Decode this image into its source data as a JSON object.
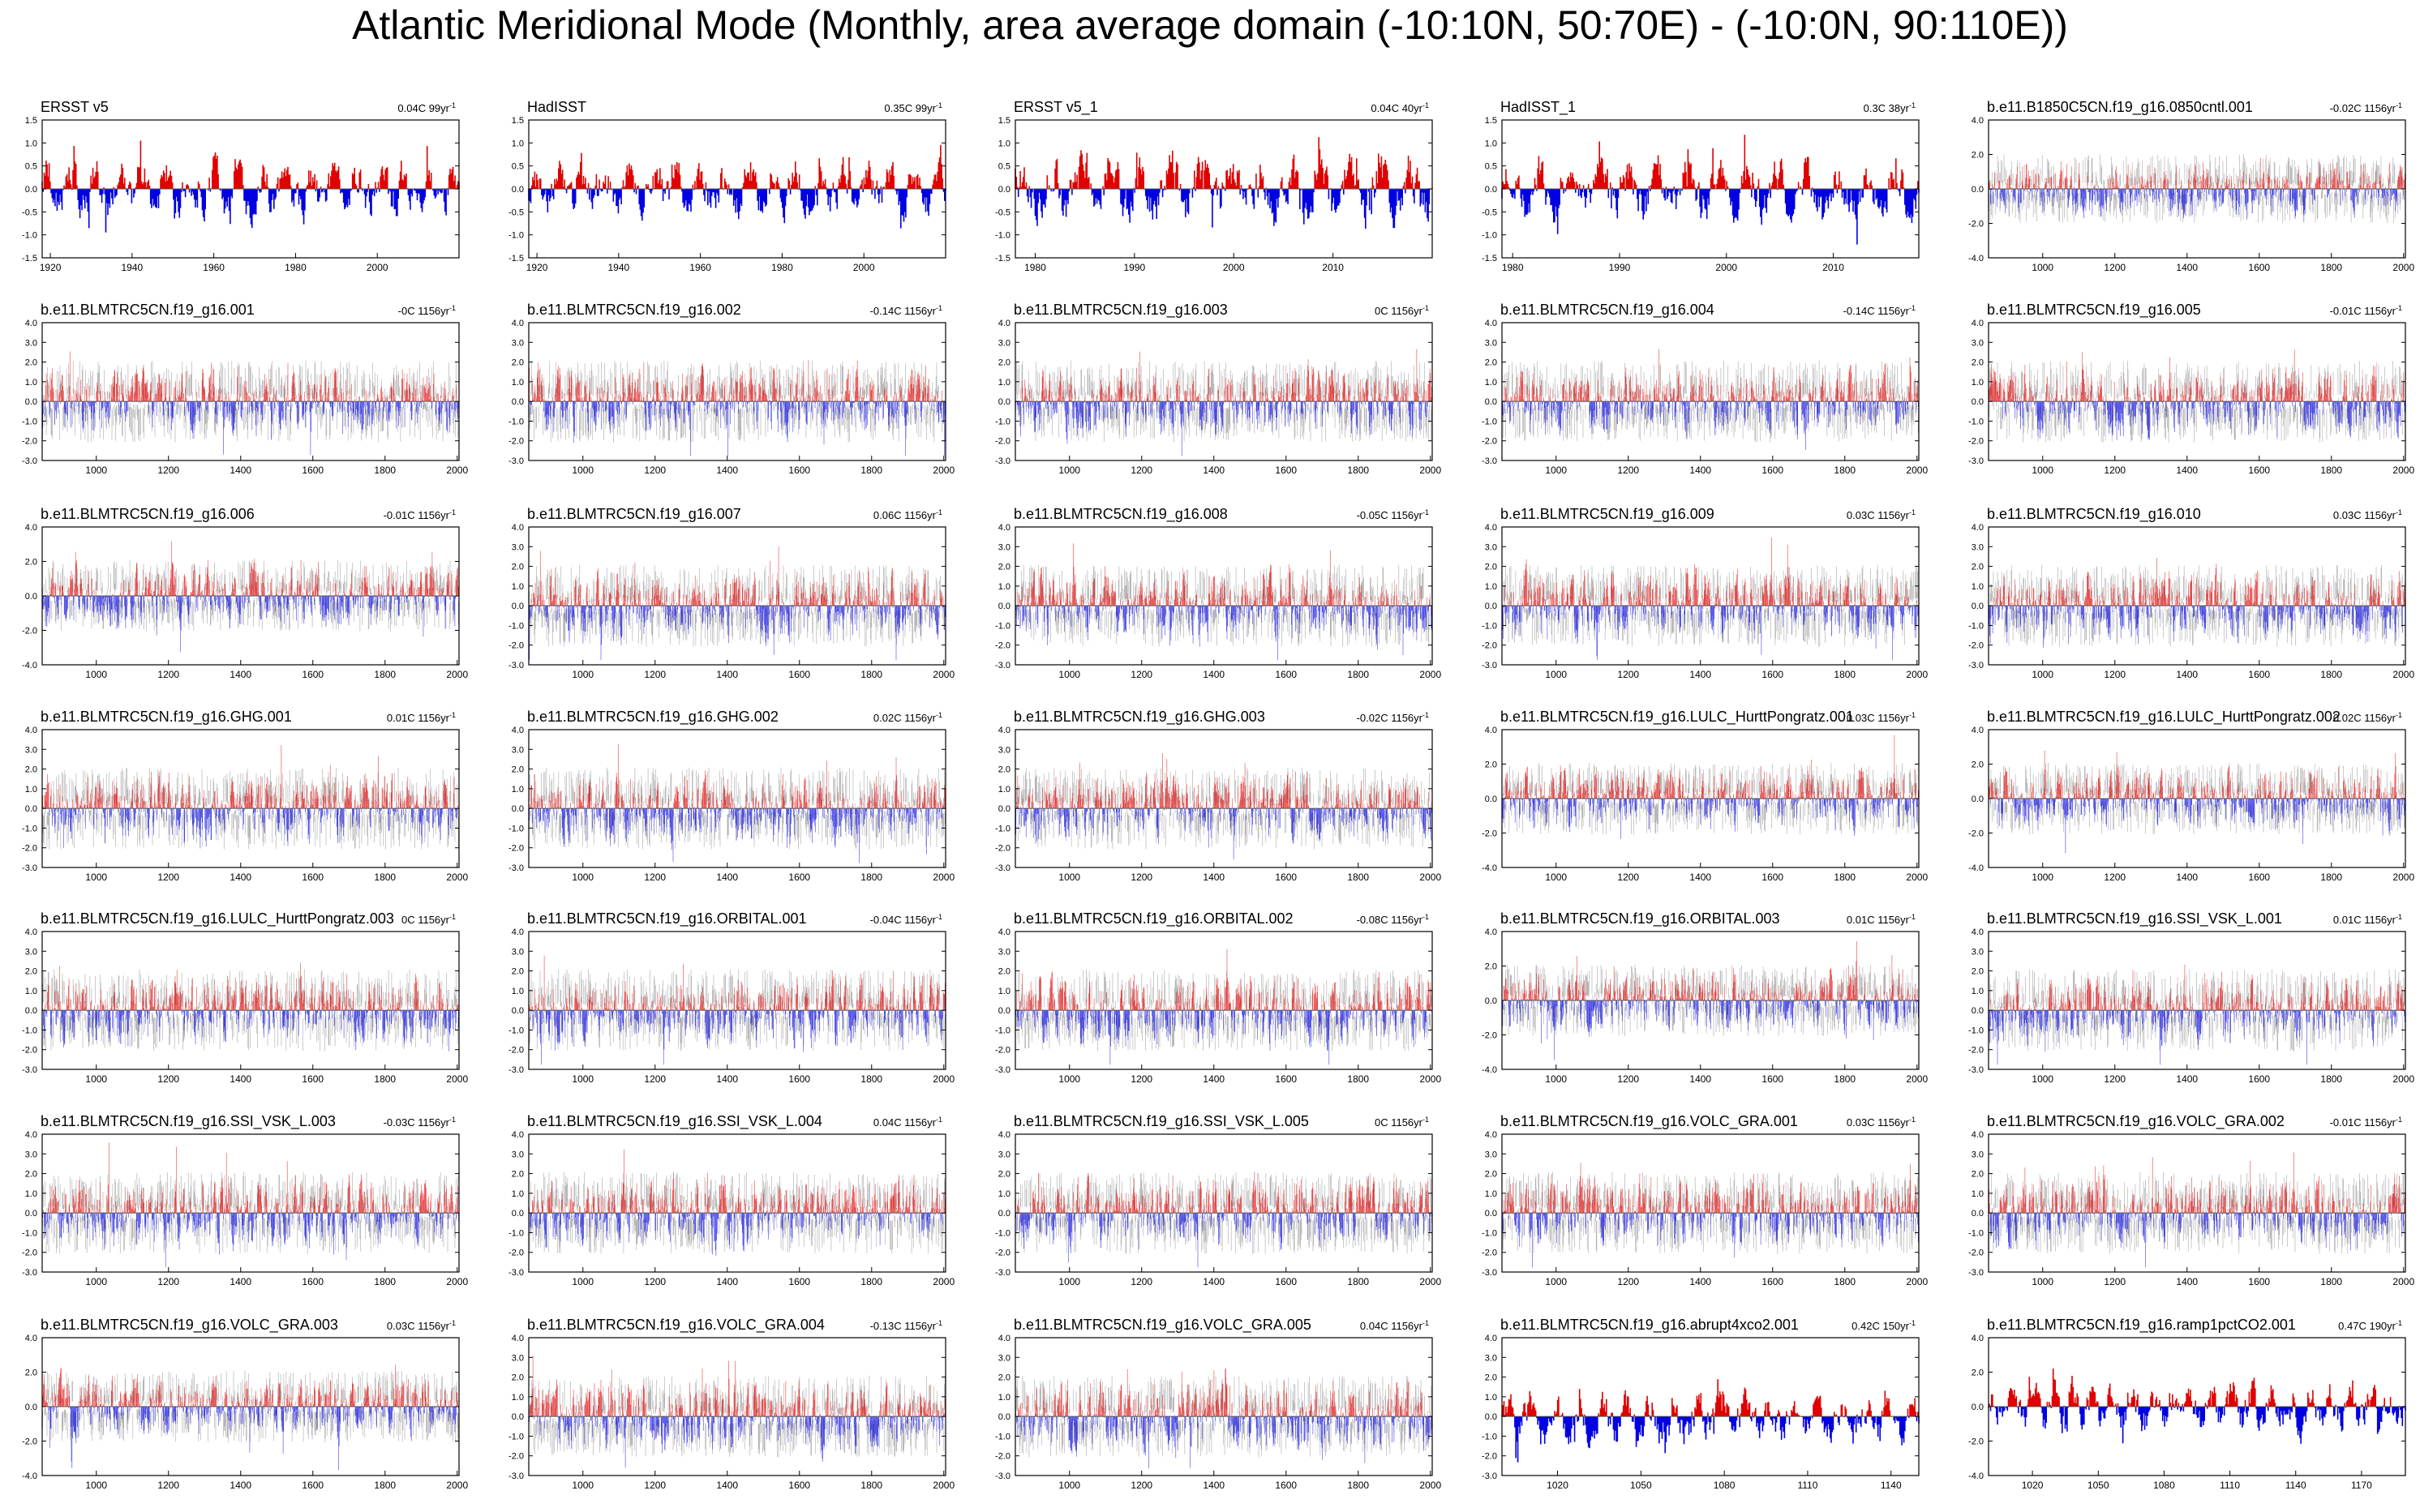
{
  "title": "Atlantic Meridional Mode (Monthly, area average domain (-10:10N, 50:70E) - (-10:0N, 90:110E))",
  "colors": {
    "positive": "#e00000",
    "negative": "#0000e0",
    "ensemble": "#b4b4b4",
    "frame": "#000000"
  },
  "chart_data": [
    {
      "name": "ERSST v5",
      "trend": "0.04C 99yr",
      "trend_sup": "-1",
      "type": "area",
      "style": "solid",
      "xlim": [
        1918,
        2020
      ],
      "ylim": [
        -1.5,
        1.5
      ],
      "yticks": [
        "1.5",
        "1.0",
        "0.5",
        "0.0",
        "-0.5",
        "-1.0",
        "-1.5"
      ],
      "xticks": [
        1920,
        1940,
        1960,
        1980,
        2000
      ],
      "amp": 0.95
    },
    {
      "name": "HadISST",
      "trend": "0.35C 99yr",
      "trend_sup": "-1",
      "type": "area",
      "style": "solid",
      "xlim": [
        1918,
        2020
      ],
      "ylim": [
        -1.5,
        1.5
      ],
      "yticks": [
        "1.5",
        "1.0",
        "0.5",
        "0.0",
        "-0.5",
        "-1.0",
        "-1.5"
      ],
      "xticks": [
        1920,
        1940,
        1960,
        1980,
        2000
      ],
      "amp": 0.85
    },
    {
      "name": "ERSST v5_1",
      "trend": "0.04C 40yr",
      "trend_sup": "-1",
      "type": "area",
      "style": "solid",
      "xlim": [
        1978,
        2020
      ],
      "ylim": [
        -1.5,
        1.5
      ],
      "yticks": [
        "1.5",
        "1.0",
        "0.5",
        "0.0",
        "-0.5",
        "-1.0",
        "-1.5"
      ],
      "xticks": [
        1980,
        1990,
        2000,
        2010
      ],
      "amp": 1.1
    },
    {
      "name": "HadISST_1",
      "trend": "0.3C 38yr",
      "trend_sup": "-1",
      "type": "area",
      "style": "solid",
      "xlim": [
        1979,
        2018
      ],
      "ylim": [
        -1.5,
        1.5
      ],
      "yticks": [
        "1.5",
        "1.0",
        "0.5",
        "0.0",
        "-0.5",
        "-1.0",
        "-1.5"
      ],
      "xticks": [
        1980,
        1990,
        2000,
        2010
      ],
      "amp": 1.0
    },
    {
      "name": "b.e11.B1850C5CN.f19_g16.0850cntl.001",
      "trend": "-0.02C 1156yr",
      "trend_sup": "-1",
      "type": "area",
      "style": "ensemble",
      "xlim": [
        850,
        2005
      ],
      "ylim": [
        -4,
        4
      ],
      "yticks": [
        "4.0",
        "2.0",
        "0.0",
        "-2.0",
        "-4.0"
      ],
      "xticks": [
        1000,
        1200,
        1400,
        1600,
        1800,
        2000
      ],
      "amp": 2.5
    },
    {
      "name": "b.e11.BLMTRC5CN.f19_g16.001",
      "trend": "-0C 1156yr",
      "trend_sup": "-1",
      "type": "area",
      "style": "ensemble",
      "xlim": [
        850,
        2005
      ],
      "ylim": [
        -3,
        4
      ],
      "yticks": [
        "4.0",
        "3.0",
        "2.0",
        "1.0",
        "0.0",
        "-1.0",
        "-2.0",
        "-3.0"
      ],
      "xticks": [
        1000,
        1200,
        1400,
        1600,
        1800,
        2000
      ],
      "amp": 2.6
    },
    {
      "name": "b.e11.BLMTRC5CN.f19_g16.002",
      "trend": "-0.14C 1156yr",
      "trend_sup": "-1",
      "type": "area",
      "style": "ensemble",
      "xlim": [
        850,
        2005
      ],
      "ylim": [
        -3,
        4
      ],
      "yticks": [
        "4.0",
        "3.0",
        "2.0",
        "1.0",
        "0.0",
        "-1.0",
        "-2.0",
        "-3.0"
      ],
      "xticks": [
        1000,
        1200,
        1400,
        1600,
        1800,
        2000
      ],
      "amp": 2.6
    },
    {
      "name": "b.e11.BLMTRC5CN.f19_g16.003",
      "trend": "0C 1156yr",
      "trend_sup": "-1",
      "type": "area",
      "style": "ensemble",
      "xlim": [
        850,
        2005
      ],
      "ylim": [
        -3,
        4
      ],
      "yticks": [
        "4.0",
        "3.0",
        "2.0",
        "1.0",
        "0.0",
        "-1.0",
        "-2.0",
        "-3.0"
      ],
      "xticks": [
        1000,
        1200,
        1400,
        1600,
        1800,
        2000
      ],
      "amp": 2.6
    },
    {
      "name": "b.e11.BLMTRC5CN.f19_g16.004",
      "trend": "-0.14C 1156yr",
      "trend_sup": "-1",
      "type": "area",
      "style": "ensemble",
      "xlim": [
        850,
        2005
      ],
      "ylim": [
        -3,
        4
      ],
      "yticks": [
        "4.0",
        "3.0",
        "2.0",
        "1.0",
        "0.0",
        "-1.0",
        "-2.0",
        "-3.0"
      ],
      "xticks": [
        1000,
        1200,
        1400,
        1600,
        1800,
        2000
      ],
      "amp": 2.6
    },
    {
      "name": "b.e11.BLMTRC5CN.f19_g16.005",
      "trend": "-0.01C 1156yr",
      "trend_sup": "-1",
      "type": "area",
      "style": "ensemble",
      "xlim": [
        850,
        2005
      ],
      "ylim": [
        -3,
        4
      ],
      "yticks": [
        "4.0",
        "3.0",
        "2.0",
        "1.0",
        "0.0",
        "-1.0",
        "-2.0",
        "-3.0"
      ],
      "xticks": [
        1000,
        1200,
        1400,
        1600,
        1800,
        2000
      ],
      "amp": 2.6
    },
    {
      "name": "b.e11.BLMTRC5CN.f19_g16.006",
      "trend": "-0.01C 1156yr",
      "trend_sup": "-1",
      "type": "area",
      "style": "ensemble",
      "xlim": [
        850,
        2005
      ],
      "ylim": [
        -4,
        4
      ],
      "yticks": [
        "4.0",
        "2.0",
        "0.0",
        "-2.0",
        "-4.0"
      ],
      "xticks": [
        1000,
        1200,
        1400,
        1600,
        1800,
        2000
      ],
      "amp": 2.6
    },
    {
      "name": "b.e11.BLMTRC5CN.f19_g16.007",
      "trend": "0.06C 1156yr",
      "trend_sup": "-1",
      "type": "area",
      "style": "ensemble",
      "xlim": [
        850,
        2005
      ],
      "ylim": [
        -3,
        4
      ],
      "yticks": [
        "4.0",
        "3.0",
        "2.0",
        "1.0",
        "0.0",
        "-1.0",
        "-2.0",
        "-3.0"
      ],
      "xticks": [
        1000,
        1200,
        1400,
        1600,
        1800,
        2000
      ],
      "amp": 2.6
    },
    {
      "name": "b.e11.BLMTRC5CN.f19_g16.008",
      "trend": "-0.05C 1156yr",
      "trend_sup": "-1",
      "type": "area",
      "style": "ensemble",
      "xlim": [
        850,
        2005
      ],
      "ylim": [
        -3,
        4
      ],
      "yticks": [
        "4.0",
        "3.0",
        "2.0",
        "1.0",
        "0.0",
        "-1.0",
        "-2.0",
        "-3.0"
      ],
      "xticks": [
        1000,
        1200,
        1400,
        1600,
        1800,
        2000
      ],
      "amp": 2.6
    },
    {
      "name": "b.e11.BLMTRC5CN.f19_g16.009",
      "trend": "0.03C 1156yr",
      "trend_sup": "-1",
      "type": "area",
      "style": "ensemble",
      "xlim": [
        850,
        2005
      ],
      "ylim": [
        -3,
        4
      ],
      "yticks": [
        "4.0",
        "3.0",
        "2.0",
        "1.0",
        "0.0",
        "-1.0",
        "-2.0",
        "-3.0"
      ],
      "xticks": [
        1000,
        1200,
        1400,
        1600,
        1800,
        2000
      ],
      "amp": 2.6
    },
    {
      "name": "b.e11.BLMTRC5CN.f19_g16.010",
      "trend": "0.03C 1156yr",
      "trend_sup": "-1",
      "type": "area",
      "style": "ensemble",
      "xlim": [
        850,
        2005
      ],
      "ylim": [
        -3,
        4
      ],
      "yticks": [
        "4.0",
        "3.0",
        "2.0",
        "1.0",
        "0.0",
        "-1.0",
        "-2.0",
        "-3.0"
      ],
      "xticks": [
        1000,
        1200,
        1400,
        1600,
        1800,
        2000
      ],
      "amp": 2.6
    },
    {
      "name": "b.e11.BLMTRC5CN.f19_g16.GHG.001",
      "trend": "0.01C 1156yr",
      "trend_sup": "-1",
      "type": "area",
      "style": "ensemble",
      "xlim": [
        850,
        2005
      ],
      "ylim": [
        -3,
        4
      ],
      "yticks": [
        "4.0",
        "3.0",
        "2.0",
        "1.0",
        "0.0",
        "-1.0",
        "-2.0",
        "-3.0"
      ],
      "xticks": [
        1000,
        1200,
        1400,
        1600,
        1800,
        2000
      ],
      "amp": 2.6
    },
    {
      "name": "b.e11.BLMTRC5CN.f19_g16.GHG.002",
      "trend": "0.02C 1156yr",
      "trend_sup": "-1",
      "type": "area",
      "style": "ensemble",
      "xlim": [
        850,
        2005
      ],
      "ylim": [
        -3,
        4
      ],
      "yticks": [
        "4.0",
        "3.0",
        "2.0",
        "1.0",
        "0.0",
        "-1.0",
        "-2.0",
        "-3.0"
      ],
      "xticks": [
        1000,
        1200,
        1400,
        1600,
        1800,
        2000
      ],
      "amp": 2.6
    },
    {
      "name": "b.e11.BLMTRC5CN.f19_g16.GHG.003",
      "trend": "-0.02C 1156yr",
      "trend_sup": "-1",
      "type": "area",
      "style": "ensemble",
      "xlim": [
        850,
        2005
      ],
      "ylim": [
        -3,
        4
      ],
      "yticks": [
        "4.0",
        "3.0",
        "2.0",
        "1.0",
        "0.0",
        "-1.0",
        "-2.0",
        "-3.0"
      ],
      "xticks": [
        1000,
        1200,
        1400,
        1600,
        1800,
        2000
      ],
      "amp": 2.6
    },
    {
      "name": "b.e11.BLMTRC5CN.f19_g16.LULC_HurttPongratz.001",
      "trend": "0.03C 1156yr",
      "trend_sup": "-1",
      "type": "area",
      "style": "ensemble",
      "xlim": [
        850,
        2005
      ],
      "ylim": [
        -4,
        4
      ],
      "yticks": [
        "4.0",
        "2.0",
        "0.0",
        "-2.0",
        "-4.0"
      ],
      "xticks": [
        1000,
        1200,
        1400,
        1600,
        1800,
        2000
      ],
      "amp": 2.6
    },
    {
      "name": "b.e11.BLMTRC5CN.f19_g16.LULC_HurttPongratz.002",
      "trend": "0.02C 1156yr",
      "trend_sup": "-1",
      "type": "area",
      "style": "ensemble",
      "xlim": [
        850,
        2005
      ],
      "ylim": [
        -4,
        4
      ],
      "yticks": [
        "4.0",
        "2.0",
        "0.0",
        "-2.0",
        "-4.0"
      ],
      "xticks": [
        1000,
        1200,
        1400,
        1600,
        1800,
        2000
      ],
      "amp": 2.6
    },
    {
      "name": "b.e11.BLMTRC5CN.f19_g16.LULC_HurttPongratz.003",
      "trend": "0C 1156yr",
      "trend_sup": "-1",
      "type": "area",
      "style": "ensemble",
      "xlim": [
        850,
        2005
      ],
      "ylim": [
        -3,
        4
      ],
      "yticks": [
        "4.0",
        "3.0",
        "2.0",
        "1.0",
        "0.0",
        "-1.0",
        "-2.0",
        "-3.0"
      ],
      "xticks": [
        1000,
        1200,
        1400,
        1600,
        1800,
        2000
      ],
      "amp": 2.6
    },
    {
      "name": "b.e11.BLMTRC5CN.f19_g16.ORBITAL.001",
      "trend": "-0.04C 1156yr",
      "trend_sup": "-1",
      "type": "area",
      "style": "ensemble",
      "xlim": [
        850,
        2005
      ],
      "ylim": [
        -3,
        4
      ],
      "yticks": [
        "4.0",
        "3.0",
        "2.0",
        "1.0",
        "0.0",
        "-1.0",
        "-2.0",
        "-3.0"
      ],
      "xticks": [
        1000,
        1200,
        1400,
        1600,
        1800,
        2000
      ],
      "amp": 2.6
    },
    {
      "name": "b.e11.BLMTRC5CN.f19_g16.ORBITAL.002",
      "trend": "-0.08C 1156yr",
      "trend_sup": "-1",
      "type": "area",
      "style": "ensemble",
      "xlim": [
        850,
        2005
      ],
      "ylim": [
        -3,
        4
      ],
      "yticks": [
        "4.0",
        "3.0",
        "2.0",
        "1.0",
        "0.0",
        "-1.0",
        "-2.0",
        "-3.0"
      ],
      "xticks": [
        1000,
        1200,
        1400,
        1600,
        1800,
        2000
      ],
      "amp": 2.6
    },
    {
      "name": "b.e11.BLMTRC5CN.f19_g16.ORBITAL.003",
      "trend": "0.01C 1156yr",
      "trend_sup": "-1",
      "type": "area",
      "style": "ensemble",
      "xlim": [
        850,
        2005
      ],
      "ylim": [
        -4,
        4
      ],
      "yticks": [
        "4.0",
        "2.0",
        "0.0",
        "-2.0",
        "-4.0"
      ],
      "xticks": [
        1000,
        1200,
        1400,
        1600,
        1800,
        2000
      ],
      "amp": 2.6
    },
    {
      "name": "b.e11.BLMTRC5CN.f19_g16.SSI_VSK_L.001",
      "trend": "0.01C 1156yr",
      "trend_sup": "-1",
      "type": "area",
      "style": "ensemble",
      "xlim": [
        850,
        2005
      ],
      "ylim": [
        -3,
        4
      ],
      "yticks": [
        "4.0",
        "3.0",
        "2.0",
        "1.0",
        "0.0",
        "-1.0",
        "-2.0",
        "-3.0"
      ],
      "xticks": [
        1000,
        1200,
        1400,
        1600,
        1800,
        2000
      ],
      "amp": 2.6
    },
    {
      "name": "b.e11.BLMTRC5CN.f19_g16.SSI_VSK_L.003",
      "trend": "-0.03C 1156yr",
      "trend_sup": "-1",
      "type": "area",
      "style": "ensemble",
      "xlim": [
        850,
        2005
      ],
      "ylim": [
        -3,
        4
      ],
      "yticks": [
        "4.0",
        "3.0",
        "2.0",
        "1.0",
        "0.0",
        "-1.0",
        "-2.0",
        "-3.0"
      ],
      "xticks": [
        1000,
        1200,
        1400,
        1600,
        1800,
        2000
      ],
      "amp": 2.6
    },
    {
      "name": "b.e11.BLMTRC5CN.f19_g16.SSI_VSK_L.004",
      "trend": "0.04C 1156yr",
      "trend_sup": "-1",
      "type": "area",
      "style": "ensemble",
      "xlim": [
        850,
        2005
      ],
      "ylim": [
        -3,
        4
      ],
      "yticks": [
        "4.0",
        "3.0",
        "2.0",
        "1.0",
        "0.0",
        "-1.0",
        "-2.0",
        "-3.0"
      ],
      "xticks": [
        1000,
        1200,
        1400,
        1600,
        1800,
        2000
      ],
      "amp": 2.6
    },
    {
      "name": "b.e11.BLMTRC5CN.f19_g16.SSI_VSK_L.005",
      "trend": "0C 1156yr",
      "trend_sup": "-1",
      "type": "area",
      "style": "ensemble",
      "xlim": [
        850,
        2005
      ],
      "ylim": [
        -3,
        4
      ],
      "yticks": [
        "4.0",
        "3.0",
        "2.0",
        "1.0",
        "0.0",
        "-1.0",
        "-2.0",
        "-3.0"
      ],
      "xticks": [
        1000,
        1200,
        1400,
        1600,
        1800,
        2000
      ],
      "amp": 2.6
    },
    {
      "name": "b.e11.BLMTRC5CN.f19_g16.VOLC_GRA.001",
      "trend": "0.03C 1156yr",
      "trend_sup": "-1",
      "type": "area",
      "style": "ensemble",
      "xlim": [
        850,
        2005
      ],
      "ylim": [
        -3,
        4
      ],
      "yticks": [
        "4.0",
        "3.0",
        "2.0",
        "1.0",
        "0.0",
        "-1.0",
        "-2.0",
        "-3.0"
      ],
      "xticks": [
        1000,
        1200,
        1400,
        1600,
        1800,
        2000
      ],
      "amp": 2.6
    },
    {
      "name": "b.e11.BLMTRC5CN.f19_g16.VOLC_GRA.002",
      "trend": "-0.01C 1156yr",
      "trend_sup": "-1",
      "type": "area",
      "style": "ensemble",
      "xlim": [
        850,
        2005
      ],
      "ylim": [
        -3,
        4
      ],
      "yticks": [
        "4.0",
        "3.0",
        "2.0",
        "1.0",
        "0.0",
        "-1.0",
        "-2.0",
        "-3.0"
      ],
      "xticks": [
        1000,
        1200,
        1400,
        1600,
        1800,
        2000
      ],
      "amp": 2.6
    },
    {
      "name": "b.e11.BLMTRC5CN.f19_g16.VOLC_GRA.003",
      "trend": "0.03C 1156yr",
      "trend_sup": "-1",
      "type": "area",
      "style": "ensemble",
      "xlim": [
        850,
        2005
      ],
      "ylim": [
        -4,
        4
      ],
      "yticks": [
        "4.0",
        "2.0",
        "0.0",
        "-2.0",
        "-4.0"
      ],
      "xticks": [
        1000,
        1200,
        1400,
        1600,
        1800,
        2000
      ],
      "amp": 2.6
    },
    {
      "name": "b.e11.BLMTRC5CN.f19_g16.VOLC_GRA.004",
      "trend": "-0.13C 1156yr",
      "trend_sup": "-1",
      "type": "area",
      "style": "ensemble",
      "xlim": [
        850,
        2005
      ],
      "ylim": [
        -3,
        4
      ],
      "yticks": [
        "4.0",
        "3.0",
        "2.0",
        "1.0",
        "0.0",
        "-1.0",
        "-2.0",
        "-3.0"
      ],
      "xticks": [
        1000,
        1200,
        1400,
        1600,
        1800,
        2000
      ],
      "amp": 2.6
    },
    {
      "name": "b.e11.BLMTRC5CN.f19_g16.VOLC_GRA.005",
      "trend": "0.04C 1156yr",
      "trend_sup": "-1",
      "type": "area",
      "style": "ensemble",
      "xlim": [
        850,
        2005
      ],
      "ylim": [
        -3,
        4
      ],
      "yticks": [
        "4.0",
        "3.0",
        "2.0",
        "1.0",
        "0.0",
        "-1.0",
        "-2.0",
        "-3.0"
      ],
      "xticks": [
        1000,
        1200,
        1400,
        1600,
        1800,
        2000
      ],
      "amp": 2.6
    },
    {
      "name": "b.e11.BLMTRC5CN.f19_g16.abrupt4xco2.001",
      "trend": "0.42C 150yr",
      "trend_sup": "-1",
      "type": "area",
      "style": "solid",
      "xlim": [
        1000,
        1150
      ],
      "ylim": [
        -3,
        4
      ],
      "yticks": [
        "4.0",
        "3.0",
        "2.0",
        "1.0",
        "0.0",
        "-1.0",
        "-2.0",
        "-3.0"
      ],
      "xticks": [
        1020,
        1050,
        1080,
        1110,
        1140
      ],
      "amp": 2.0
    },
    {
      "name": "b.e11.BLMTRC5CN.f19_g16.ramp1pctCO2.001",
      "trend": "0.47C 190yr",
      "trend_sup": "-1",
      "type": "area",
      "style": "solid",
      "xlim": [
        1000,
        1190
      ],
      "ylim": [
        -4,
        4
      ],
      "yticks": [
        "4.0",
        "2.0",
        "0.0",
        "-2.0",
        "-4.0"
      ],
      "xticks": [
        1020,
        1050,
        1080,
        1110,
        1140,
        1170
      ],
      "amp": 2.2
    }
  ]
}
